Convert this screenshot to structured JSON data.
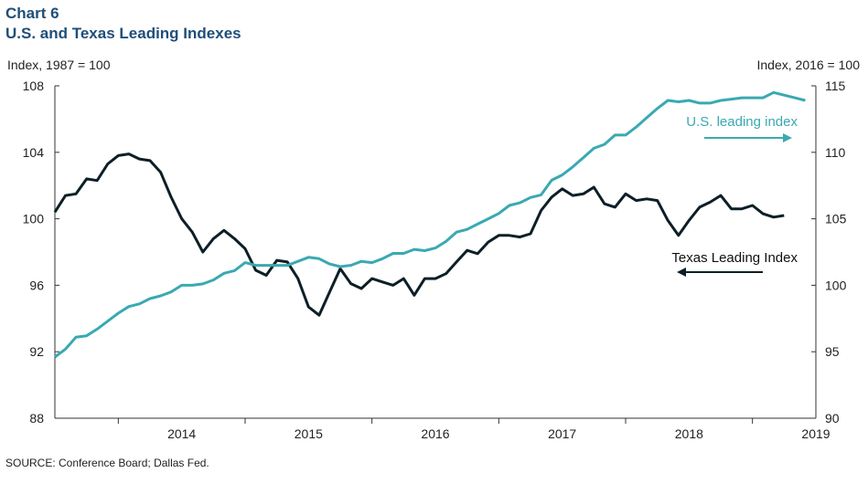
{
  "header": {
    "chart_number": "Chart 6",
    "title": "U.S. and Texas Leading Indexes"
  },
  "source": "SOURCE: Conference Board; Dallas Fed.",
  "colors": {
    "texas": "#0d1f26",
    "us": "#3aa9b2",
    "title": "#1f4e79",
    "axis": "#333333"
  },
  "chart_data": {
    "type": "line",
    "title": "U.S. and Texas Leading Indexes",
    "left_axis": {
      "label": "Index, 1987 = 100",
      "ylim": [
        88,
        108
      ],
      "ticks": [
        88,
        92,
        96,
        100,
        104,
        108
      ]
    },
    "right_axis": {
      "label": "Index, 2016 = 100",
      "ylim": [
        90,
        115
      ],
      "ticks": [
        90,
        95,
        100,
        105,
        110,
        115
      ]
    },
    "x_start": "2013-07",
    "x_end": "2019-07",
    "x_tick_labels": [
      "2014",
      "2015",
      "2016",
      "2017",
      "2018",
      "2019"
    ],
    "grid": false,
    "series": [
      {
        "name": "Texas Leading Index",
        "axis": "left",
        "arrow": "left",
        "start": "2013-07",
        "values": [
          100.4,
          101.4,
          101.5,
          102.4,
          102.3,
          103.3,
          103.8,
          103.9,
          103.6,
          103.5,
          102.8,
          101.3,
          100.0,
          99.2,
          98.0,
          98.8,
          99.3,
          98.8,
          98.2,
          96.9,
          96.6,
          97.5,
          97.4,
          96.4,
          94.7,
          94.2,
          95.6,
          97.0,
          96.1,
          95.8,
          96.4,
          96.2,
          96.0,
          96.4,
          95.4,
          96.4,
          96.4,
          96.7,
          97.4,
          98.1,
          97.9,
          98.6,
          99.0,
          99.0,
          98.9,
          99.1,
          100.5,
          101.3,
          101.8,
          101.4,
          101.5,
          101.9,
          100.9,
          100.7,
          101.5,
          101.1,
          101.2,
          101.1,
          99.9,
          99.0,
          99.9,
          100.7,
          101.0,
          101.4,
          100.6,
          100.6,
          100.8,
          100.3,
          100.1,
          100.2
        ]
      },
      {
        "name": "U.S. leading index",
        "axis": "right",
        "arrow": "right",
        "start": "2013-07",
        "values": [
          94.6,
          95.2,
          96.1,
          96.2,
          96.7,
          97.3,
          97.9,
          98.4,
          98.6,
          99.0,
          99.2,
          99.5,
          100.0,
          100.0,
          100.1,
          100.4,
          100.9,
          101.1,
          101.7,
          101.5,
          101.5,
          101.5,
          101.5,
          101.8,
          102.1,
          102.0,
          101.6,
          101.4,
          101.5,
          101.8,
          101.7,
          102.0,
          102.4,
          102.4,
          102.7,
          102.6,
          102.8,
          103.3,
          104.0,
          104.2,
          104.6,
          105.0,
          105.4,
          106.0,
          106.2,
          106.6,
          106.8,
          107.9,
          108.3,
          108.9,
          109.6,
          110.3,
          110.6,
          111.3,
          111.3,
          111.9,
          112.6,
          113.3,
          113.9,
          113.8,
          113.9,
          113.7,
          113.7,
          113.9,
          114.0,
          114.1,
          114.1,
          114.1,
          114.5,
          114.3,
          114.1,
          113.9
        ]
      }
    ]
  }
}
